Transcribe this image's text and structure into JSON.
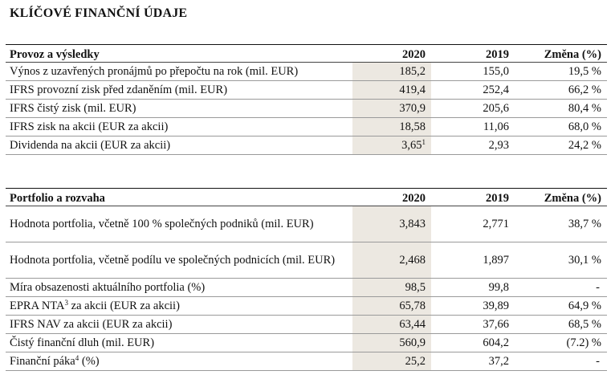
{
  "title": "KLÍČOVÉ FINANČNÍ ÚDAJE",
  "table1": {
    "headers": {
      "label": "Provoz a výsledky",
      "y2020": "2020",
      "y2019": "2019",
      "change": "Změna (%)"
    },
    "rows": [
      {
        "label": "Výnos z uzavřených pronájmů po přepočtu na rok (mil. EUR)",
        "y2020": "185,2",
        "y2019": "155,0",
        "change": "19,5 %"
      },
      {
        "label": "IFRS provozní zisk před zdaněním (mil. EUR)",
        "y2020": "419,4",
        "y2019": "252,4",
        "change": "66,2 %"
      },
      {
        "label": "IFRS čistý zisk (mil. EUR)",
        "y2020": "370,9",
        "y2019": "205,6",
        "change": "80,4 %"
      },
      {
        "label": "IFRS zisk na akcii (EUR za akcii)",
        "y2020": "18,58",
        "y2019": "11,06",
        "change": "68,0 %"
      },
      {
        "label": "Dividenda na akcii (EUR za akcii)",
        "y2020": "3,65",
        "y2020_sup": "1",
        "y2019": "2,93",
        "change": "24,2 %"
      }
    ]
  },
  "table2": {
    "headers": {
      "label": "Portfolio a rozvaha",
      "y2020": "2020",
      "y2019": "2019",
      "change": "Změna (%)"
    },
    "rows": [
      {
        "label": "Hodnota portfolia, včetně 100 % společných podniků (mil. EUR)",
        "y2020": "3,843",
        "y2019": "2,771",
        "change": "38,7 %"
      },
      {
        "label": "Hodnota portfolia, včetně podílu ve společných podnicích (mil. EUR)",
        "y2020": "2,468",
        "y2019": "1,897",
        "change": "30,1 %"
      },
      {
        "label": "Míra obsazenosti aktuálního portfolia (%)",
        "y2020": "98,5",
        "y2019": "99,8",
        "change": "-"
      },
      {
        "label_pre": "EPRA NTA",
        "label_sup": "3",
        "label_post": " za akcii (EUR za akcii)",
        "y2020": "65,78",
        "y2019": "39,89",
        "change": "64,9 %"
      },
      {
        "label": "IFRS NAV za akcii (EUR za akcii)",
        "y2020": "63,44",
        "y2019": "37,66",
        "change": "68,5 %"
      },
      {
        "label": "Čistý finanční dluh (mil. EUR)",
        "y2020": "560,9",
        "y2019": "604,2",
        "change": "(7.2) %"
      },
      {
        "label_pre": "Finanční páka",
        "label_sup": "4",
        "label_post": " (%)",
        "y2020": "25,2",
        "y2019": "37,2",
        "change": "-"
      }
    ]
  }
}
